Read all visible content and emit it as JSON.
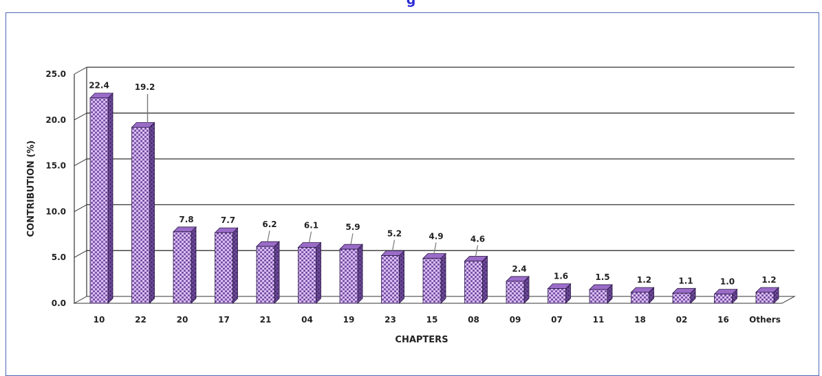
{
  "chart_data": {
    "type": "bar",
    "title": "",
    "xlabel": "CHAPTERS",
    "ylabel": "CONTRIBUTION (%)",
    "ylim": [
      0,
      25
    ],
    "yticks": [
      "0.0",
      "5.0",
      "10.0",
      "15.0",
      "20.0",
      "25.0"
    ],
    "categories": [
      "10",
      "22",
      "20",
      "17",
      "21",
      "04",
      "19",
      "23",
      "15",
      "08",
      "09",
      "07",
      "11",
      "18",
      "02",
      "16",
      "Others"
    ],
    "values": [
      22.4,
      19.2,
      7.8,
      7.7,
      6.2,
      6.1,
      5.9,
      5.2,
      4.9,
      4.6,
      2.4,
      1.6,
      1.5,
      1.2,
      1.1,
      1.0,
      1.2
    ],
    "value_labels": [
      "22.4",
      "19.2",
      "7.8",
      "7.7",
      "6.2",
      "6.1",
      "5.9",
      "5.2",
      "4.9",
      "4.6",
      "2.4",
      "1.6",
      "1.5",
      "1.2",
      "1.1",
      "1.0",
      "1.2"
    ],
    "grid": true,
    "legend": "none",
    "colors": {
      "bar_fill": "#b98ce0",
      "bar_pattern": "#4a2a7a",
      "bar_side": "#5b3a86",
      "bar_top": "#9a6cc8",
      "grid": "#333333",
      "frame": "#4d66b3",
      "title": "#2b2bd6"
    }
  }
}
